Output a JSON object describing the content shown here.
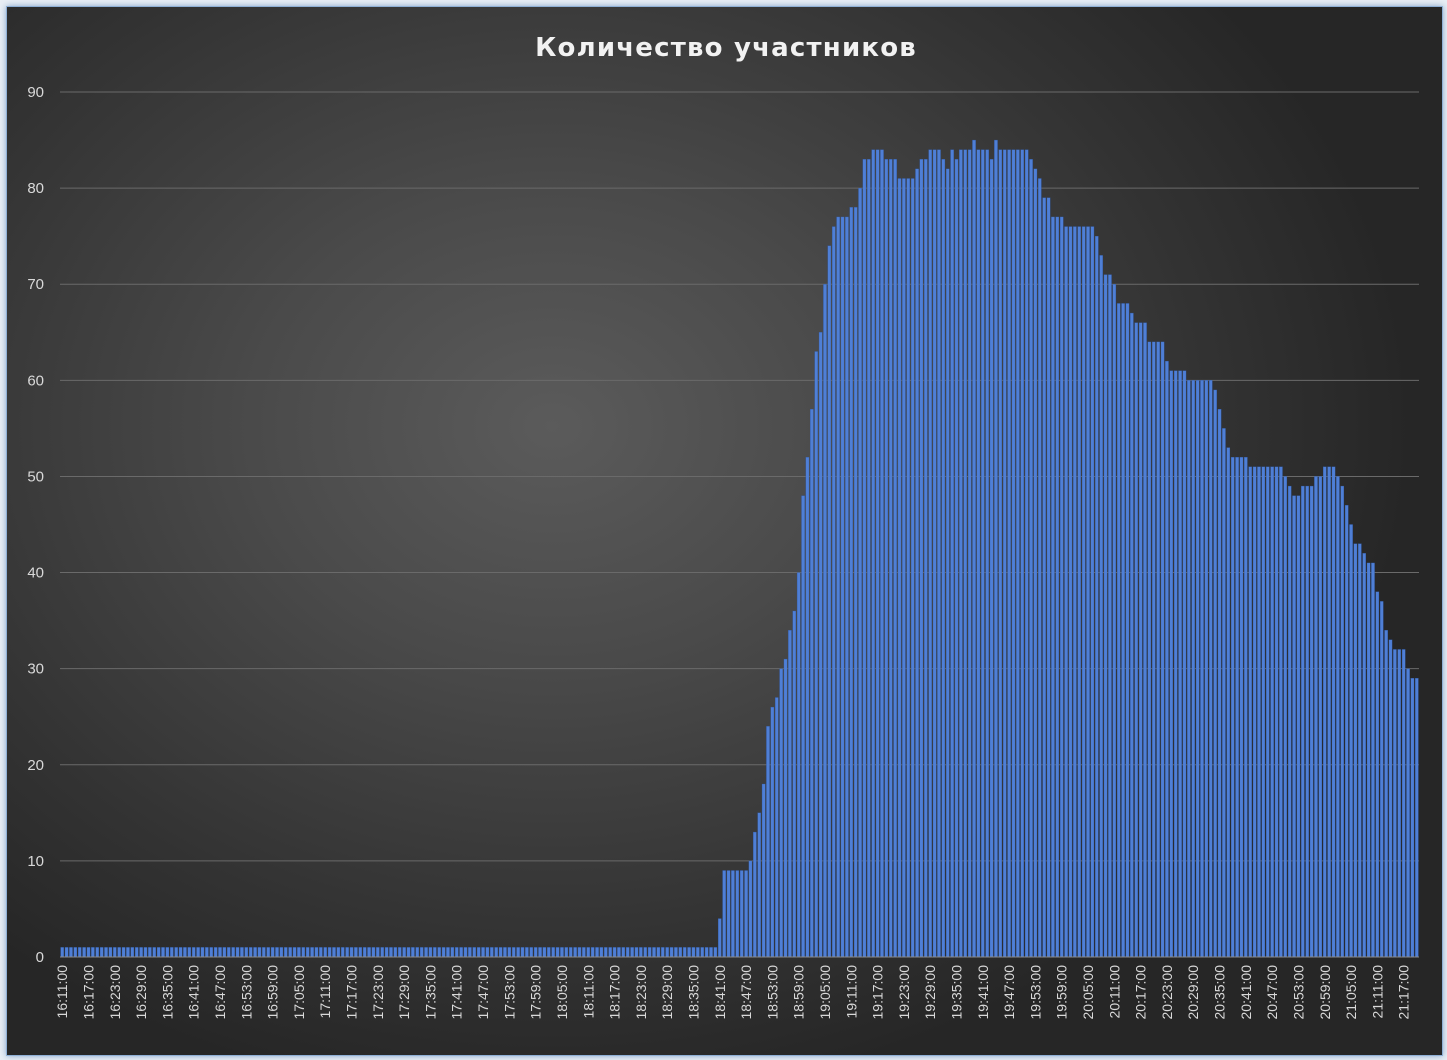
{
  "chart_data": {
    "type": "bar",
    "title": "Количество участников",
    "xlabel": "",
    "ylabel": "",
    "ylim": [
      0,
      90
    ],
    "y_ticks": [
      "0",
      "10",
      "20",
      "30",
      "40",
      "50",
      "60",
      "70",
      "80",
      "90"
    ],
    "grid": true,
    "colors": {
      "bar": "#4f7fd6",
      "bar_edge": "#2f5aa8",
      "background": "#3f3f3f",
      "grid": "#6a6a6a",
      "text": "#d9d9d9"
    },
    "x_start": "16:11:00",
    "interval_minutes": 1,
    "x_tick_labels": [
      "16:11:00",
      "16:17:00",
      "16:23:00",
      "16:29:00",
      "16:35:00",
      "16:41:00",
      "16:47:00",
      "16:53:00",
      "16:59:00",
      "17:05:00",
      "17:11:00",
      "17:17:00",
      "17:23:00",
      "17:29:00",
      "17:35:00",
      "17:41:00",
      "17:47:00",
      "17:53:00",
      "17:59:00",
      "18:05:00",
      "18:11:00",
      "18:17:00",
      "18:23:00",
      "18:29:00",
      "18:35:00",
      "18:41:00",
      "18:47:00",
      "18:53:00",
      "18:59:00",
      "19:05:00",
      "19:11:00",
      "19:17:00",
      "19:23:00",
      "19:29:00",
      "19:35:00",
      "19:41:00",
      "19:47:00",
      "19:53:00",
      "19:59:00",
      "20:05:00",
      "20:11:00",
      "20:17:00",
      "20:23:00",
      "20:29:00",
      "20:35:00",
      "20:41:00",
      "20:47:00",
      "20:53:00",
      "20:59:00",
      "21:05:00",
      "21:11:00",
      "21:17:00"
    ],
    "values": [
      1,
      1,
      1,
      1,
      1,
      1,
      1,
      1,
      1,
      1,
      1,
      1,
      1,
      1,
      1,
      1,
      1,
      1,
      1,
      1,
      1,
      1,
      1,
      1,
      1,
      1,
      1,
      1,
      1,
      1,
      1,
      1,
      1,
      1,
      1,
      1,
      1,
      1,
      1,
      1,
      1,
      1,
      1,
      1,
      1,
      1,
      1,
      1,
      1,
      1,
      1,
      1,
      1,
      1,
      1,
      1,
      1,
      1,
      1,
      1,
      1,
      1,
      1,
      1,
      1,
      1,
      1,
      1,
      1,
      1,
      1,
      1,
      1,
      1,
      1,
      1,
      1,
      1,
      1,
      1,
      1,
      1,
      1,
      1,
      1,
      1,
      1,
      1,
      1,
      1,
      1,
      1,
      1,
      1,
      1,
      1,
      1,
      1,
      1,
      1,
      1,
      1,
      1,
      1,
      1,
      1,
      1,
      1,
      1,
      1,
      1,
      1,
      1,
      1,
      1,
      1,
      1,
      1,
      1,
      1,
      1,
      1,
      1,
      1,
      1,
      1,
      1,
      1,
      1,
      1,
      1,
      1,
      1,
      1,
      1,
      1,
      1,
      1,
      1,
      1,
      1,
      1,
      1,
      1,
      1,
      1,
      1,
      1,
      1,
      1,
      4,
      9,
      9,
      9,
      9,
      9,
      9,
      10,
      13,
      15,
      18,
      24,
      26,
      27,
      30,
      31,
      34,
      36,
      40,
      48,
      52,
      57,
      63,
      65,
      70,
      74,
      76,
      77,
      77,
      77,
      78,
      78,
      80,
      83,
      83,
      84,
      84,
      84,
      83,
      83,
      83,
      81,
      81,
      81,
      81,
      82,
      83,
      83,
      84,
      84,
      84,
      83,
      82,
      84,
      83,
      84,
      84,
      84,
      85,
      84,
      84,
      84,
      83,
      85,
      84,
      84,
      84,
      84,
      84,
      84,
      84,
      83,
      82,
      81,
      79,
      79,
      77,
      77,
      77,
      76,
      76,
      76,
      76,
      76,
      76,
      76,
      75,
      73,
      71,
      71,
      70,
      68,
      68,
      68,
      67,
      66,
      66,
      66,
      64,
      64,
      64,
      64,
      62,
      61,
      61,
      61,
      61,
      60,
      60,
      60,
      60,
      60,
      60,
      59,
      57,
      55,
      53,
      52,
      52,
      52,
      52,
      51,
      51,
      51,
      51,
      51,
      51,
      51,
      51,
      50,
      49,
      48,
      48,
      49,
      49,
      49,
      50,
      50,
      51,
      51,
      51,
      50,
      49,
      47,
      45,
      43,
      43,
      42,
      41,
      41,
      38,
      37,
      34,
      33,
      32,
      32,
      32,
      30,
      29,
      29
    ]
  }
}
